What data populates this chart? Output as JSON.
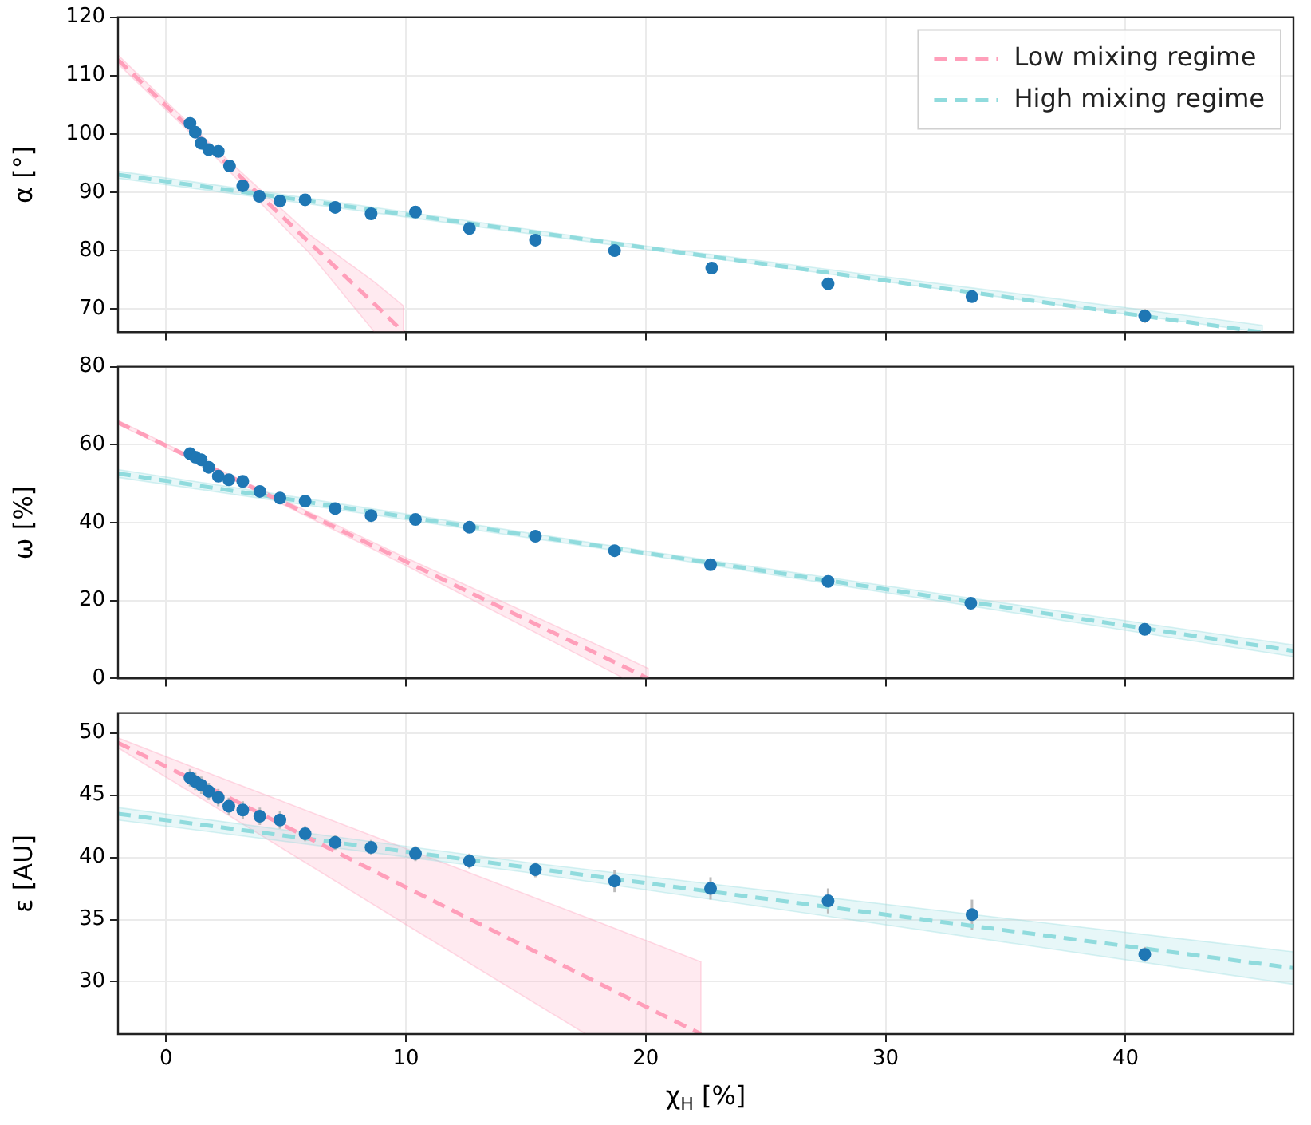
{
  "chart_data": [
    {
      "type": "scatter",
      "ylabel": "α [°]",
      "xlim": [
        -2,
        47
      ],
      "xticks": [
        0,
        10,
        20,
        30,
        40
      ],
      "ylim": [
        66,
        120
      ],
      "yticks": [
        70,
        80,
        90,
        100,
        110,
        120
      ],
      "grid": true,
      "legend": "top right",
      "tick_labels": "y",
      "series": [
        {
          "type": "line",
          "name": "Low mixing regime",
          "color": "#ff9fba",
          "line_style": "dashed",
          "marker": "none",
          "x": [
            -2,
            2,
            6,
            8.7,
            9.9
          ],
          "values": [
            112.7,
            97.0,
            81.3,
            70.8,
            66.0
          ],
          "upper": [
            113.5,
            97.7,
            82.7,
            74.6,
            70.5
          ],
          "lower": [
            112.0,
            96.3,
            79.5,
            66.0,
            66.0
          ]
        },
        {
          "type": "line",
          "name": "High mixing regime",
          "color": "#90dbdd",
          "line_style": "dashed",
          "marker": "none",
          "x": [
            -2,
            20,
            45.7
          ],
          "values": [
            93.0,
            80.5,
            66.0
          ],
          "upper": [
            93.6,
            80.8,
            67.2
          ],
          "lower": [
            92.4,
            80.2,
            66.0
          ]
        },
        {
          "type": "scatter",
          "color": "#1f77b4",
          "marker": "circle",
          "x": [
            1.0,
            1.22,
            1.47,
            1.78,
            2.18,
            2.65,
            3.2,
            3.89,
            4.75,
            5.8,
            7.05,
            8.55,
            10.4,
            12.65,
            15.4,
            18.7,
            22.75,
            27.6,
            33.6,
            40.8
          ],
          "values": [
            101.8,
            100.3,
            98.4,
            97.3,
            97.0,
            94.5,
            91.1,
            89.3,
            88.5,
            88.7,
            87.4,
            86.3,
            86.6,
            83.8,
            81.8,
            80.0,
            77.0,
            74.3,
            72.1,
            68.8
          ],
          "errors": [
            0.4,
            0.4,
            0.4,
            0.4,
            0.4,
            0.4,
            0.4,
            0.4,
            0.4,
            0.4,
            0.5,
            0.5,
            0.5,
            0.5,
            0.5,
            0.6,
            0.6,
            0.8,
            0.8,
            1.2
          ]
        }
      ]
    },
    {
      "type": "scatter",
      "ylabel": "ω [%]",
      "xlim": [
        -2,
        47
      ],
      "xticks": [
        0,
        10,
        20,
        30,
        40
      ],
      "ylim": [
        0,
        80
      ],
      "yticks": [
        0,
        20,
        40,
        60,
        80
      ],
      "grid": true,
      "tick_labels": "y",
      "series": [
        {
          "type": "line",
          "color": "#ff9fba",
          "line_style": "dashed",
          "marker": "none",
          "x": [
            -2,
            2,
            10,
            19.1,
            20.1
          ],
          "values": [
            65.7,
            53.8,
            30.0,
            3.0,
            0.0
          ],
          "upper": [
            66.2,
            54.2,
            31.0,
            5.5,
            2.6
          ],
          "lower": [
            65.2,
            53.4,
            29.0,
            0.0,
            0.0
          ]
        },
        {
          "type": "line",
          "color": "#90dbdd",
          "line_style": "dashed",
          "marker": "none",
          "x": [
            -2,
            20,
            47
          ],
          "values": [
            52.6,
            32.2,
            7.1
          ],
          "upper": [
            53.6,
            32.7,
            8.6
          ],
          "lower": [
            51.6,
            31.7,
            5.6
          ]
        },
        {
          "type": "scatter",
          "color": "#1f77b4",
          "marker": "circle",
          "x": [
            1.0,
            1.22,
            1.47,
            1.78,
            2.18,
            2.62,
            3.2,
            3.91,
            4.75,
            5.8,
            7.05,
            8.55,
            10.4,
            12.65,
            15.4,
            18.7,
            22.7,
            27.6,
            33.55,
            40.8
          ],
          "values": [
            57.7,
            56.8,
            56.1,
            54.2,
            51.9,
            51.0,
            50.6,
            48.0,
            46.3,
            45.5,
            43.6,
            41.8,
            40.8,
            38.8,
            36.5,
            32.8,
            29.2,
            24.9,
            19.3,
            12.6
          ],
          "errors": [
            1.0,
            1.0,
            1.0,
            1.0,
            1.0,
            1.0,
            1.0,
            1.0,
            1.0,
            1.0,
            1.0,
            1.0,
            1.0,
            1.0,
            1.2,
            1.2,
            1.2,
            1.2,
            1.5,
            1.5
          ]
        }
      ]
    },
    {
      "type": "scatter",
      "ylabel": "ε [AU]",
      "xlabel": "χ$_{H}$ [%]",
      "xlim": [
        -2,
        47
      ],
      "xticks": [
        0,
        10,
        20,
        30,
        40
      ],
      "ylim": [
        25.8,
        51.6
      ],
      "yticks": [
        30,
        35,
        40,
        45,
        50
      ],
      "grid": true,
      "series": [
        {
          "type": "line",
          "color": "#ff9fba",
          "line_style": "dashed",
          "marker": "none",
          "x": [
            -2,
            2,
            10,
            17.5,
            22.3
          ],
          "values": [
            49.2,
            45.4,
            37.6,
            30.4,
            25.8
          ],
          "upper": [
            49.6,
            46.6,
            40.7,
            35.2,
            31.6
          ],
          "lower": [
            48.8,
            44.1,
            34.6,
            25.8,
            25.8
          ]
        },
        {
          "type": "line",
          "color": "#90dbdd",
          "line_style": "dashed",
          "marker": "none",
          "x": [
            -2,
            15,
            47
          ],
          "values": [
            43.5,
            39.2,
            31.1
          ],
          "upper": [
            44.0,
            39.6,
            32.4
          ],
          "lower": [
            43.0,
            38.8,
            29.8
          ]
        },
        {
          "type": "scatter",
          "color": "#1f77b4",
          "marker": "circle",
          "x": [
            1.0,
            1.22,
            1.47,
            1.78,
            2.18,
            2.62,
            3.2,
            3.91,
            4.75,
            5.8,
            7.05,
            8.55,
            10.4,
            12.65,
            15.4,
            18.7,
            22.7,
            27.6,
            33.6,
            40.8
          ],
          "values": [
            46.4,
            46.1,
            45.8,
            45.3,
            44.8,
            44.1,
            43.8,
            43.3,
            43.0,
            41.9,
            41.2,
            40.8,
            40.3,
            39.7,
            39.0,
            38.1,
            37.5,
            36.5,
            35.4,
            32.2
          ],
          "errors": [
            0.7,
            0.7,
            0.7,
            0.7,
            0.7,
            0.7,
            0.7,
            0.7,
            0.7,
            0.6,
            0.6,
            0.6,
            0.6,
            0.6,
            0.6,
            0.9,
            0.9,
            1.0,
            1.2,
            0.6
          ]
        }
      ]
    }
  ]
}
